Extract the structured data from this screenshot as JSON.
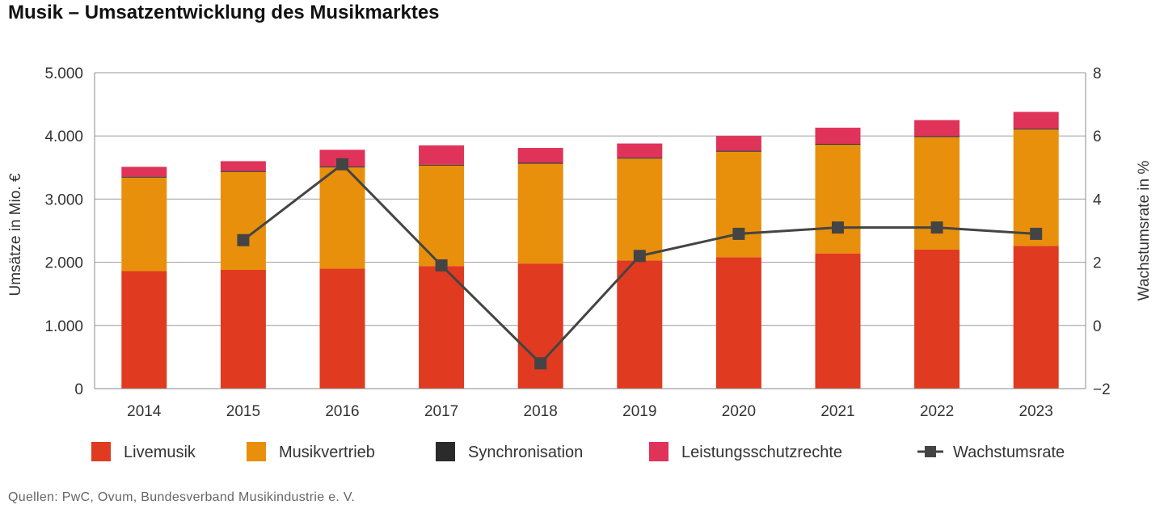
{
  "title": "Musik – Umsatzentwicklung des Musikmarktes",
  "source": "Quellen: PwC, Ovum, Bundesverband Musikindustrie e. V.",
  "chart_data": {
    "type": "bar",
    "stacked": true,
    "categories": [
      "2014",
      "2015",
      "2016",
      "2017",
      "2018",
      "2019",
      "2020",
      "2021",
      "2022",
      "2023"
    ],
    "series": [
      {
        "name": "Livemusik",
        "color": "#e03a20",
        "values": [
          1860,
          1880,
          1900,
          1940,
          1980,
          2030,
          2080,
          2140,
          2200,
          2260
        ]
      },
      {
        "name": "Musikvertrieb",
        "color": "#e8900c",
        "values": [
          1480,
          1550,
          1600,
          1590,
          1580,
          1610,
          1670,
          1720,
          1780,
          1840
        ]
      },
      {
        "name": "Synchronisation",
        "color": "#2b2b2b",
        "values": [
          15,
          15,
          15,
          15,
          15,
          15,
          15,
          15,
          15,
          15
        ]
      },
      {
        "name": "Leistungsschutzrechte",
        "color": "#e0335a",
        "values": [
          155,
          155,
          265,
          305,
          235,
          225,
          235,
          255,
          255,
          265
        ]
      }
    ],
    "line_series": {
      "name": "Wachstumsrate",
      "color": "#444444",
      "axis": "right",
      "values": [
        null,
        2.7,
        5.1,
        1.9,
        -1.2,
        2.2,
        2.9,
        3.1,
        3.1,
        2.9
      ]
    },
    "y_axis": {
      "label": "Umsätze in Mio. €",
      "ylim": [
        0,
        5000
      ],
      "ticks": [
        0,
        1000,
        2000,
        3000,
        4000,
        5000
      ],
      "tick_labels": [
        "0",
        "1.000",
        "2.000",
        "3.000",
        "4.000",
        "5.000"
      ]
    },
    "y2_axis": {
      "label": "Wachstumsrate in %",
      "ylim": [
        -2,
        8
      ],
      "ticks": [
        -2,
        0,
        2,
        4,
        6,
        8
      ],
      "tick_labels": [
        "−2",
        "0",
        "2",
        "4",
        "6",
        "8"
      ]
    },
    "grid": true,
    "legend_position": "bottom"
  }
}
